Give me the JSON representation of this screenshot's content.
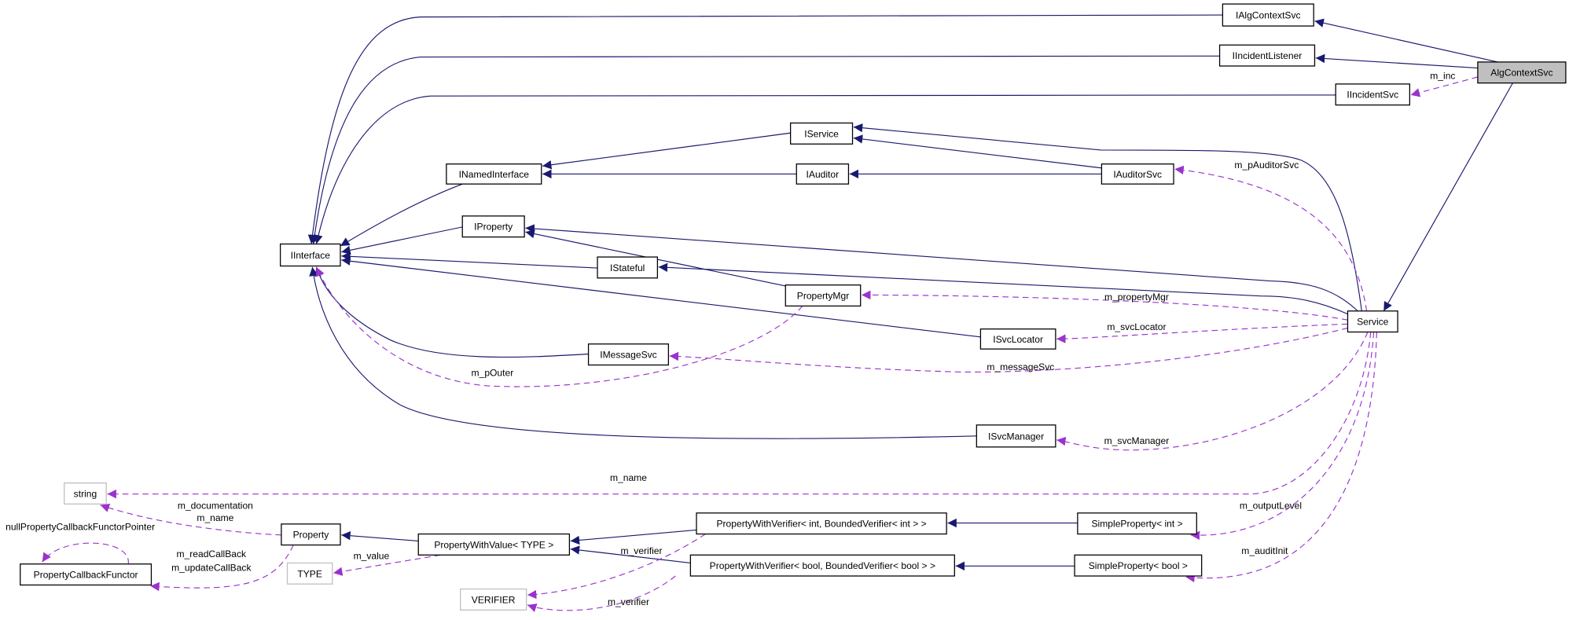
{
  "colors": {
    "inheritance": "#191970",
    "usage": "#9a32cd",
    "root_fill": "#bfbfbf",
    "external_border": "#bfbfbf"
  },
  "nodes": [
    {
      "label": "IAlgContextSvc"
    },
    {
      "label": "IIncidentListener"
    },
    {
      "label": "AlgContextSvc",
      "style": "root"
    },
    {
      "label": "IIncidentSvc"
    },
    {
      "label": "IService"
    },
    {
      "label": "INamedInterface"
    },
    {
      "label": "IAuditor"
    },
    {
      "label": "IAuditorSvc"
    },
    {
      "label": "IProperty"
    },
    {
      "label": "IInterface"
    },
    {
      "label": "IStateful"
    },
    {
      "label": "PropertyMgr"
    },
    {
      "label": "Service"
    },
    {
      "label": "ISvcLocator"
    },
    {
      "label": "IMessageSvc"
    },
    {
      "label": "ISvcManager"
    },
    {
      "label": "string",
      "style": "external"
    },
    {
      "label": "Property"
    },
    {
      "label": "PropertyCallbackFunctor"
    },
    {
      "label": "TYPE",
      "style": "external"
    },
    {
      "label": "PropertyWithValue< TYPE >"
    },
    {
      "label": "VERIFIER",
      "style": "external"
    },
    {
      "label": "PropertyWithVerifier< int, BoundedVerifier< int > >"
    },
    {
      "label": "PropertyWithVerifier< bool, BoundedVerifier< bool > >"
    },
    {
      "label": "SimpleProperty< int >"
    },
    {
      "label": "SimpleProperty< bool >"
    }
  ],
  "edges": [
    {
      "from": "AlgContextSvc",
      "to": "IIncidentSvc",
      "kind": "usage",
      "label": "m_inc"
    },
    {
      "from": "Service",
      "to": "IAuditorSvc",
      "kind": "usage",
      "label": "m_pAuditorSvc"
    },
    {
      "from": "Service",
      "to": "PropertyMgr",
      "kind": "usage",
      "label": "m_propertyMgr"
    },
    {
      "from": "Service",
      "to": "ISvcLocator",
      "kind": "usage",
      "label": "m_svcLocator"
    },
    {
      "from": "Service",
      "to": "IMessageSvc",
      "kind": "usage",
      "label": "m_messageSvc"
    },
    {
      "from": "PropertyMgr",
      "to": "IInterface",
      "kind": "usage",
      "label": "m_pOuter"
    },
    {
      "from": "Service",
      "to": "ISvcManager",
      "kind": "usage",
      "label": "m_svcManager"
    },
    {
      "from": "Service",
      "to": "string",
      "kind": "usage",
      "label": "m_name"
    },
    {
      "from": "Service",
      "to": "SimpleProperty< int >",
      "kind": "usage",
      "label": "m_outputLevel"
    },
    {
      "from": "Service",
      "to": "SimpleProperty< bool >",
      "kind": "usage",
      "label": "m_auditInit"
    },
    {
      "from": "Property",
      "to": "string",
      "kind": "usage",
      "label": "m_documentation",
      "label2": "m_name"
    },
    {
      "from": "Property",
      "to": "PropertyCallbackFunctor",
      "kind": "usage",
      "label": "m_readCallBack",
      "label2": "m_updateCallBack"
    },
    {
      "from": "PropertyCallbackFunctor",
      "to": "PropertyCallbackFunctor",
      "kind": "usage",
      "label": "nullPropertyCallbackFunctorPointer"
    },
    {
      "from": "PropertyWithValue< TYPE >",
      "to": "TYPE",
      "kind": "usage",
      "label": "m_value"
    },
    {
      "from": "PropertyWithVerifier< int, BoundedVerifier< int > >",
      "to": "VERIFIER",
      "kind": "usage",
      "label": "m_verifier"
    },
    {
      "from": "PropertyWithVerifier< bool, BoundedVerifier< bool > >",
      "to": "VERIFIER",
      "kind": "usage",
      "label": "m_verifier"
    }
  ]
}
